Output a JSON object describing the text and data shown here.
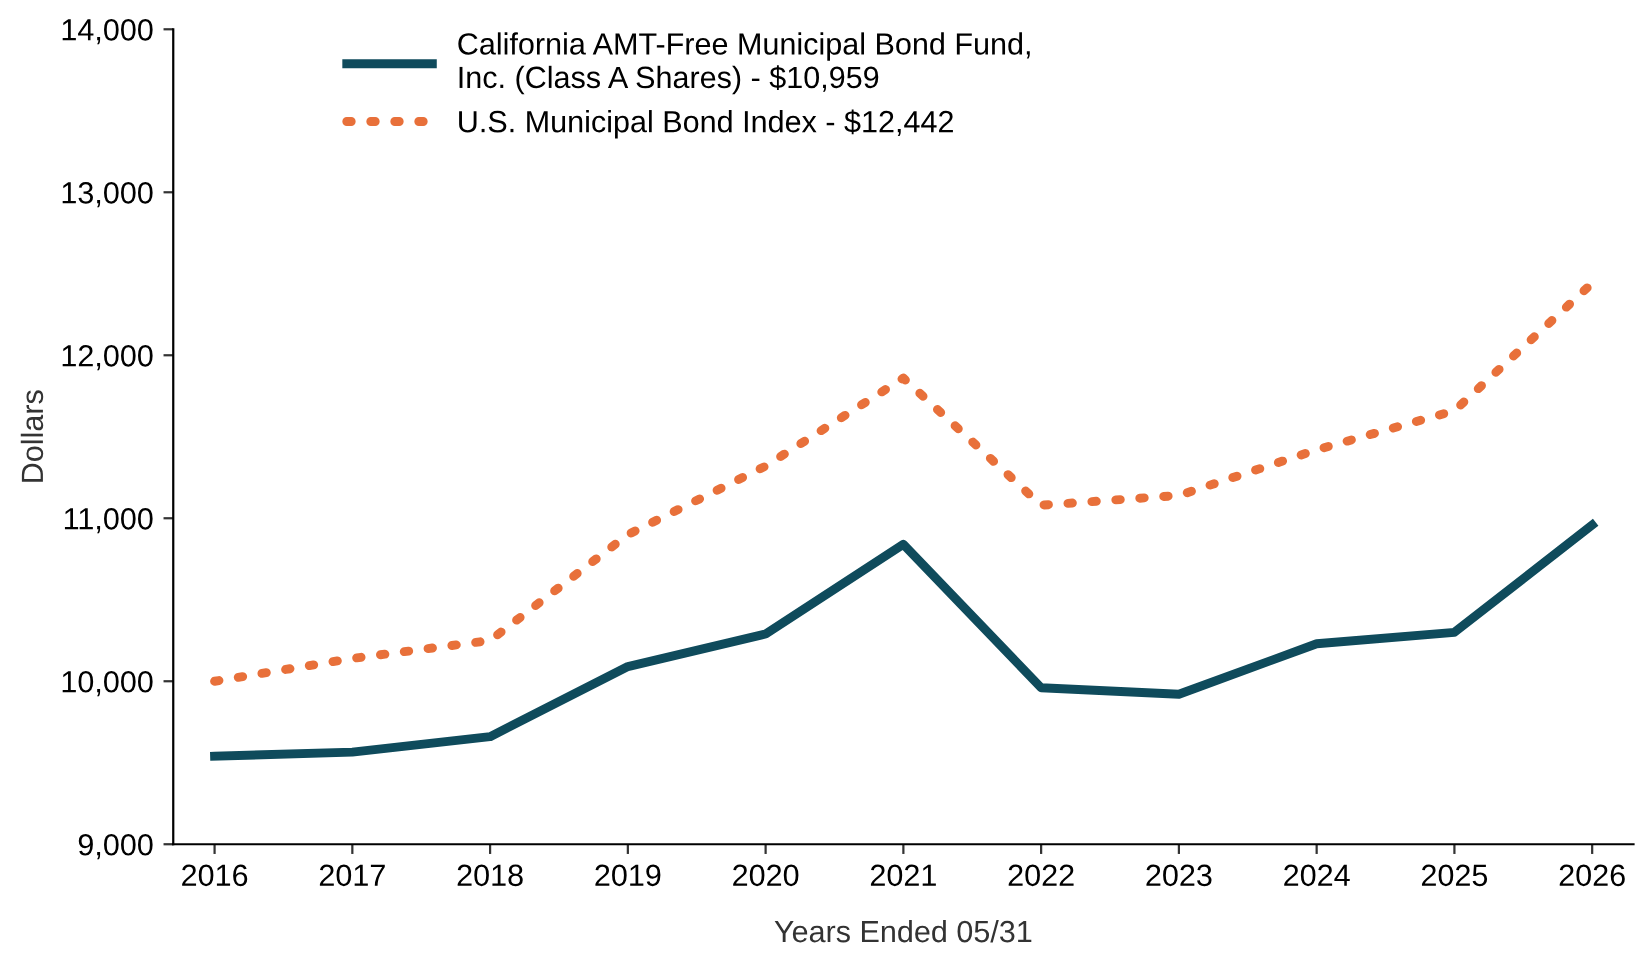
{
  "chart_data": {
    "type": "line",
    "xlabel": "Years Ended 05/31",
    "ylabel": "Dollars",
    "categories": [
      "2016",
      "2017",
      "2018",
      "2019",
      "2020",
      "2021",
      "2022",
      "2023",
      "2024",
      "2025",
      "2026"
    ],
    "series": [
      {
        "name": "California AMT-Free Municipal Bond Fund,\nInc. (Class A Shares) - $10,959",
        "color": "#0f4b5c",
        "line_style": "solid",
        "values": [
          9540,
          9565,
          9660,
          10090,
          10290,
          10840,
          9960,
          9920,
          10230,
          10300,
          10959
        ]
      },
      {
        "name": "U.S. Municipal Bond Index - $12,442",
        "color": "#e8703a",
        "line_style": "dotted",
        "values": [
          10000,
          10140,
          10250,
          10900,
          11320,
          11860,
          11080,
          11140,
          11420,
          11660,
          12442
        ]
      }
    ],
    "ylim": [
      9000,
      14000
    ],
    "yticks": [
      {
        "value": 9000,
        "label": "9,000"
      },
      {
        "value": 10000,
        "label": "10,000"
      },
      {
        "value": 11000,
        "label": "11,000"
      },
      {
        "value": 12000,
        "label": "12,000"
      },
      {
        "value": 13000,
        "label": "13,000"
      },
      {
        "value": 14000,
        "label": "14,000"
      }
    ],
    "grid": false,
    "legend": "top left",
    "marker": "none"
  }
}
